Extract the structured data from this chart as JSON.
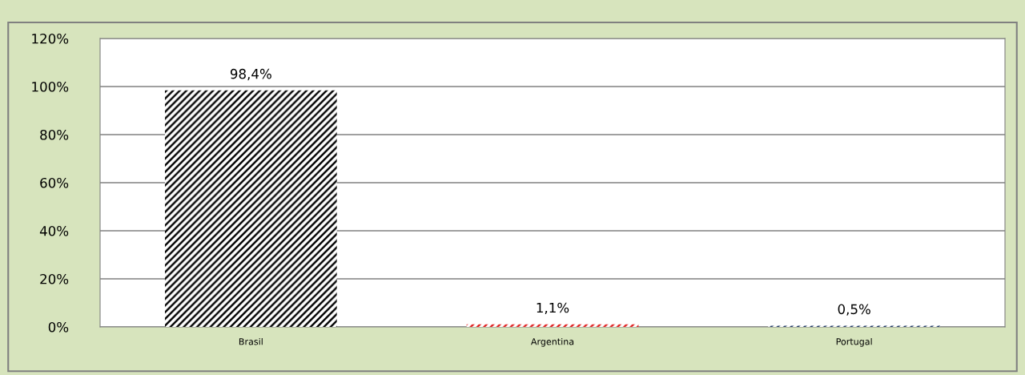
{
  "chart_data": {
    "type": "bar",
    "categories": [
      "Brasil",
      "Argentina",
      "Portugal"
    ],
    "values": [
      98.4,
      1.1,
      0.5
    ],
    "value_labels": [
      "98,4%",
      "1,1%",
      "0,5%"
    ],
    "colors": [
      "#000000",
      "#e02020",
      "#1f3864"
    ],
    "ylim": [
      0,
      120
    ],
    "yticks": [
      {
        "value": 0,
        "label": "0%"
      },
      {
        "value": 20,
        "label": "20%"
      },
      {
        "value": 40,
        "label": "40%"
      },
      {
        "value": 60,
        "label": "60%"
      },
      {
        "value": 80,
        "label": "80%"
      },
      {
        "value": 100,
        "label": "100%"
      },
      {
        "value": 120,
        "label": "120%"
      }
    ],
    "grid": "y",
    "legend": false
  }
}
